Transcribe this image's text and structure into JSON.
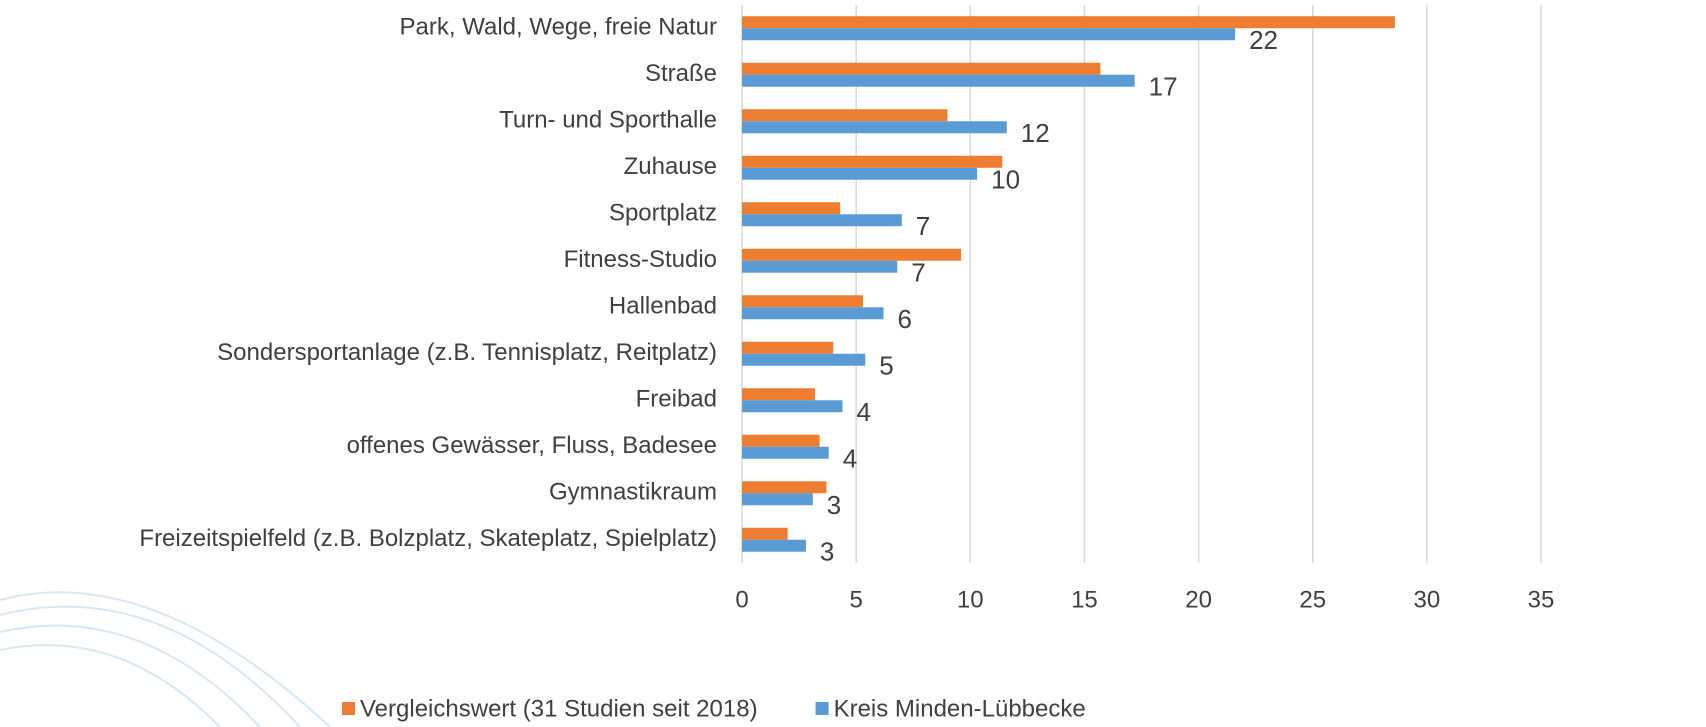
{
  "chart_data": {
    "type": "bar",
    "orientation": "horizontal",
    "categories": [
      "Park, Wald, Wege, freie Natur",
      "Straße",
      "Turn- und Sporthalle",
      "Zuhause",
      "Sportplatz",
      "Fitness-Studio",
      "Hallenbad",
      "Sondersportanlage (z.B. Tennisplatz, Reitplatz)",
      "Freibad",
      "offenes Gewässer, Fluss, Badesee",
      "Gymnastikraum",
      "Freizeitspielfeld (z.B. Bolzplatz, Skateplatz, Spielplatz)"
    ],
    "series": [
      {
        "name": "Vergleichswert (31 Studien seit 2018)",
        "color": "#ed7d31",
        "values": [
          28.6,
          15.7,
          9.0,
          11.4,
          4.3,
          9.6,
          5.3,
          4.0,
          3.2,
          3.4,
          3.7,
          2.0
        ]
      },
      {
        "name": "Kreis Minden-Lübbecke",
        "color": "#5b9bd5",
        "values": [
          21.6,
          17.2,
          11.6,
          10.3,
          7.0,
          6.8,
          6.2,
          5.4,
          4.4,
          3.8,
          3.1,
          2.8
        ],
        "value_labels": [
          "22",
          "17",
          "12",
          "10",
          "7",
          "7",
          "6",
          "5",
          "4",
          "4",
          "3",
          "3"
        ]
      }
    ],
    "xlim": [
      0,
      35
    ],
    "xticks": [
      0,
      5,
      10,
      15,
      20,
      25,
      30,
      35
    ],
    "grid": true,
    "legend": "bottom"
  }
}
